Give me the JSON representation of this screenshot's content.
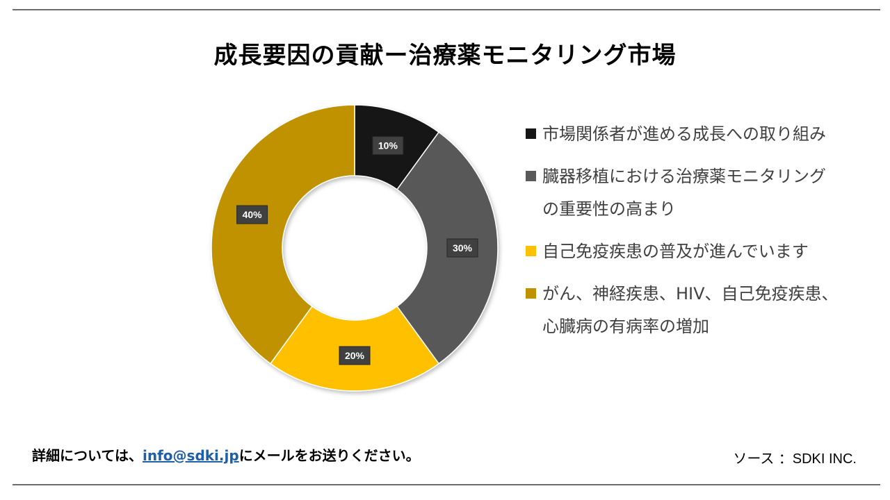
{
  "title": "成長要因の貢献ー治療薬モニタリング市場",
  "chart_data": {
    "type": "pie",
    "donut": true,
    "title": "成長要因の貢献ー治療薬モニタリング市場",
    "categories": [
      "市場関係者が進める成長への取り組み",
      "臓器移植における治療薬モニタリングの重要性の高まり",
      "自己免疫疾患の普及が進んでいます",
      "がん、神経疾患、HIV、自己免疫疾患、心臓病の有病率の増加"
    ],
    "values": [
      10,
      30,
      20,
      40
    ],
    "data_labels": [
      "10%",
      "30%",
      "20%",
      "40%"
    ],
    "colors": [
      "#161616",
      "#595959",
      "#FFC000",
      "#C09200"
    ],
    "legend_position": "right"
  },
  "footer": {
    "prefix": "詳細については、",
    "email": "info@sdki.jp",
    "suffix": "にメールをお送りください。"
  },
  "source": {
    "label": "ソース ：",
    "name": "SDKI INC."
  }
}
